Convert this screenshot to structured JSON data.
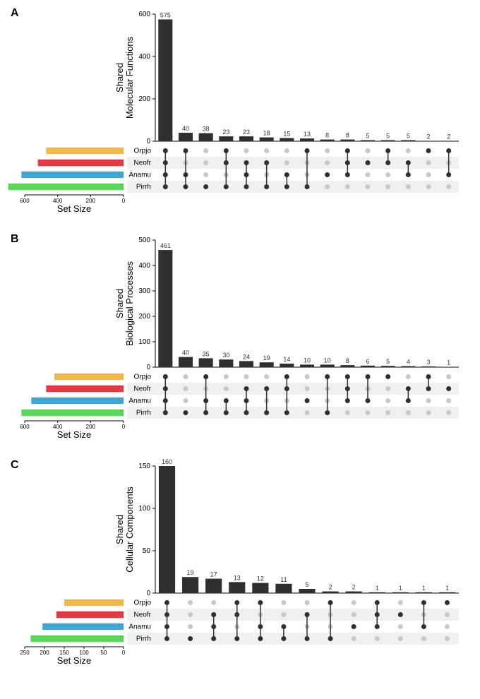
{
  "figure_width": 680,
  "figure_height": 990,
  "background_color": "#ffffff",
  "sets": [
    "Orpjo",
    "Neofr",
    "Anamu",
    "Pirrh"
  ],
  "set_colors": {
    "Orpjo": "#f4b942",
    "Neofr": "#e63946",
    "Anamu": "#3fa7d6",
    "Pirrh": "#5dd55d"
  },
  "bar_color": "#2f2f2f",
  "dot_on_color": "#2f2f2f",
  "dot_off_color": "#c8c8c8",
  "grid_color": "#f0f0f0",
  "axis_color": "#000000",
  "label_fontsize": 10,
  "value_fontsize": 9,
  "title_fontsize": 13,
  "panels": [
    {
      "id": "A",
      "ylabel1": "Shared",
      "ylabel2": "Molecular Functions",
      "ylim": [
        0,
        600
      ],
      "ytick_step": 200,
      "bars": [
        {
          "value": 575,
          "members": [
            "Orpjo",
            "Neofr",
            "Anamu",
            "Pirrh"
          ]
        },
        {
          "value": 40,
          "members": [
            "Orpjo",
            "Anamu",
            "Pirrh"
          ]
        },
        {
          "value": 38,
          "members": [
            "Pirrh"
          ]
        },
        {
          "value": 23,
          "members": [
            "Orpjo",
            "Neofr",
            "Pirrh"
          ]
        },
        {
          "value": 23,
          "members": [
            "Neofr",
            "Anamu",
            "Pirrh"
          ]
        },
        {
          "value": 18,
          "members": [
            "Neofr",
            "Pirrh"
          ]
        },
        {
          "value": 15,
          "members": [
            "Anamu",
            "Pirrh"
          ]
        },
        {
          "value": 13,
          "members": [
            "Orpjo",
            "Pirrh"
          ]
        },
        {
          "value": 8,
          "members": [
            "Anamu"
          ]
        },
        {
          "value": 8,
          "members": [
            "Orpjo",
            "Neofr",
            "Anamu"
          ]
        },
        {
          "value": 5,
          "members": [
            "Neofr"
          ]
        },
        {
          "value": 5,
          "members": [
            "Orpjo",
            "Neofr"
          ]
        },
        {
          "value": 5,
          "members": [
            "Neofr",
            "Anamu"
          ]
        },
        {
          "value": 2,
          "members": [
            "Orpjo"
          ]
        },
        {
          "value": 2,
          "members": [
            "Orpjo",
            "Anamu"
          ]
        }
      ],
      "set_sizes": {
        "Orpjo": 470,
        "Neofr": 520,
        "Anamu": 620,
        "Pirrh": 700
      },
      "setsize_ticks": [
        0,
        200,
        400,
        600
      ],
      "setsize_label": "Set Size"
    },
    {
      "id": "B",
      "ylabel1": "Shared",
      "ylabel2": "Biological Processes",
      "ylim": [
        0,
        500
      ],
      "ytick_step": 100,
      "bars": [
        {
          "value": 461,
          "members": [
            "Orpjo",
            "Neofr",
            "Anamu",
            "Pirrh"
          ]
        },
        {
          "value": 40,
          "members": [
            "Pirrh"
          ]
        },
        {
          "value": 35,
          "members": [
            "Orpjo",
            "Anamu",
            "Pirrh"
          ]
        },
        {
          "value": 30,
          "members": [
            "Anamu",
            "Pirrh"
          ]
        },
        {
          "value": 24,
          "members": [
            "Neofr",
            "Anamu",
            "Pirrh"
          ]
        },
        {
          "value": 19,
          "members": [
            "Neofr",
            "Pirrh"
          ]
        },
        {
          "value": 14,
          "members": [
            "Orpjo",
            "Neofr",
            "Pirrh"
          ]
        },
        {
          "value": 10,
          "members": [
            "Anamu"
          ]
        },
        {
          "value": 10,
          "members": [
            "Orpjo",
            "Pirrh"
          ]
        },
        {
          "value": 8,
          "members": [
            "Orpjo",
            "Neofr",
            "Anamu"
          ]
        },
        {
          "value": 6,
          "members": [
            "Orpjo",
            "Anamu"
          ]
        },
        {
          "value": 5,
          "members": [
            "Orpjo"
          ]
        },
        {
          "value": 4,
          "members": [
            "Neofr",
            "Anamu"
          ]
        },
        {
          "value": 3,
          "members": [
            "Orpjo",
            "Neofr"
          ]
        },
        {
          "value": 1,
          "members": [
            "Neofr"
          ]
        }
      ],
      "set_sizes": {
        "Orpjo": 420,
        "Neofr": 470,
        "Anamu": 560,
        "Pirrh": 620
      },
      "setsize_ticks": [
        0,
        200,
        400,
        600
      ],
      "setsize_label": "Set Size"
    },
    {
      "id": "C",
      "ylabel1": "Shared",
      "ylabel2": "Cellular Components",
      "ylim": [
        0,
        150
      ],
      "ytick_step": 50,
      "bars": [
        {
          "value": 160,
          "members": [
            "Orpjo",
            "Neofr",
            "Anamu",
            "Pirrh"
          ]
        },
        {
          "value": 19,
          "members": [
            "Pirrh"
          ]
        },
        {
          "value": 17,
          "members": [
            "Neofr",
            "Anamu",
            "Pirrh"
          ]
        },
        {
          "value": 13,
          "members": [
            "Orpjo",
            "Neofr",
            "Pirrh"
          ]
        },
        {
          "value": 12,
          "members": [
            "Orpjo",
            "Anamu",
            "Pirrh"
          ]
        },
        {
          "value": 11,
          "members": [
            "Anamu",
            "Pirrh"
          ]
        },
        {
          "value": 5,
          "members": [
            "Neofr",
            "Pirrh"
          ]
        },
        {
          "value": 2,
          "members": [
            "Orpjo",
            "Pirrh"
          ]
        },
        {
          "value": 2,
          "members": [
            "Anamu"
          ]
        },
        {
          "value": 1,
          "members": [
            "Orpjo",
            "Neofr",
            "Anamu"
          ]
        },
        {
          "value": 1,
          "members": [
            "Neofr"
          ]
        },
        {
          "value": 1,
          "members": [
            "Orpjo",
            "Anamu"
          ]
        },
        {
          "value": 1,
          "members": [
            "Orpjo"
          ]
        }
      ],
      "set_sizes": {
        "Orpjo": 150,
        "Neofr": 170,
        "Anamu": 205,
        "Pirrh": 235
      },
      "setsize_ticks": [
        0,
        50,
        100,
        150,
        200,
        250
      ],
      "setsize_label": "Set Size"
    }
  ]
}
